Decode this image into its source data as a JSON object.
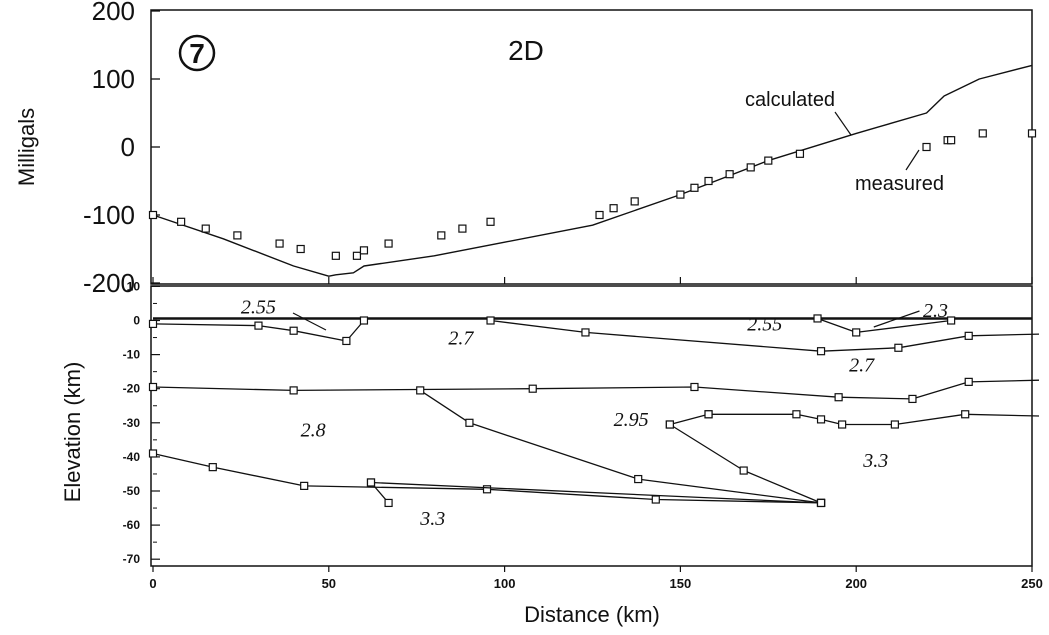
{
  "chart_data": [
    {
      "type": "line",
      "panel_label": "7",
      "title": "2D",
      "ylabel": "Milligals",
      "ylim": [
        -200,
        200
      ],
      "yticks": [
        "200",
        "100",
        "0",
        "-100",
        "-200"
      ],
      "xlim": [
        0,
        250
      ],
      "series": [
        {
          "name": "calculated",
          "style": "line",
          "x": [
            0,
            20,
            40,
            50,
            52,
            57,
            60,
            80,
            100,
            125,
            150,
            175,
            200,
            220,
            225,
            235,
            250
          ],
          "y": [
            -100,
            -135,
            -175,
            -190,
            -188,
            -185,
            -175,
            -160,
            -140,
            -115,
            -70,
            -20,
            20,
            50,
            75,
            100,
            120
          ]
        },
        {
          "name": "measured",
          "style": "markers",
          "x": [
            0,
            8,
            15,
            24,
            36,
            42,
            52,
            58,
            60,
            67,
            82,
            88,
            96,
            127,
            131,
            137,
            150,
            154,
            158,
            164,
            170,
            175,
            184,
            220,
            226,
            227,
            236,
            250
          ],
          "y": [
            -100,
            -110,
            -120,
            -130,
            -142,
            -150,
            -160,
            -160,
            -152,
            -142,
            -130,
            -120,
            -110,
            -100,
            -90,
            -80,
            -70,
            -60,
            -50,
            -40,
            -30,
            -20,
            -10,
            0,
            10,
            10,
            20,
            20
          ]
        }
      ],
      "annotations": [
        "calculated",
        "measured"
      ]
    },
    {
      "type": "line",
      "xlabel": "Distance (km)",
      "ylabel": "Elevation (km)",
      "xlim": [
        0,
        250
      ],
      "ylim": [
        -70,
        10
      ],
      "xticks": [
        "0",
        "50",
        "100",
        "150",
        "200",
        "250"
      ],
      "yticks": [
        "10",
        "0",
        "-10",
        "-20",
        "-30",
        "-40",
        "-50",
        "-60",
        "-70"
      ],
      "lines": [
        {
          "style": "thick",
          "markers": false,
          "x": [
            0,
            250
          ],
          "y": [
            0.6,
            0.6
          ]
        },
        {
          "markers": true,
          "x": [
            0,
            30,
            40,
            55,
            60
          ],
          "y": [
            -1,
            -1.5,
            -3,
            -6,
            0
          ]
        },
        {
          "markers": true,
          "x": [
            96,
            123,
            190,
            212,
            232,
            252
          ],
          "y": [
            0,
            -3.5,
            -9,
            -8,
            -4.5,
            -4
          ]
        },
        {
          "markers": true,
          "x": [
            189,
            200,
            227
          ],
          "y": [
            0.6,
            -3.5,
            0
          ]
        },
        {
          "markers": true,
          "x": [
            0,
            40,
            108,
            154,
            195,
            216,
            232,
            252
          ],
          "y": [
            -19.5,
            -20.5,
            -20,
            -19.5,
            -22.5,
            -23,
            -18,
            -17.5
          ]
        },
        {
          "markers": true,
          "x": [
            158,
            183,
            190,
            196,
            211,
            231,
            252
          ],
          "y": [
            -27.5,
            -27.5,
            -29,
            -30.5,
            -30.5,
            -27.5,
            -28
          ]
        },
        {
          "markers": true,
          "x": [
            0,
            17,
            43,
            95,
            143,
            190
          ],
          "y": [
            -39,
            -43,
            -48.5,
            -49.5,
            -52.5,
            -53.5
          ]
        },
        {
          "markers": true,
          "x": [
            62,
            67
          ],
          "y": [
            -47.5,
            -53.5
          ]
        },
        {
          "markers": true,
          "x": [
            62,
            190
          ],
          "y": [
            -47.5,
            -53.5
          ]
        },
        {
          "markers": true,
          "x": [
            76,
            90,
            138,
            190
          ],
          "y": [
            -20.5,
            -30,
            -46.5,
            -53.5
          ]
        },
        {
          "markers": true,
          "x": [
            147,
            168,
            190
          ],
          "y": [
            -30.5,
            -44,
            -53.5
          ]
        },
        {
          "markers": true,
          "x": [
            147,
            158
          ],
          "y": [
            -30.5,
            -27.5
          ]
        }
      ],
      "leader_line": {
        "from": [
          205,
          2
        ],
        "to": [
          218,
          1
        ]
      },
      "density_labels": [
        {
          "text": "2.55",
          "x": 25,
          "y": 2
        },
        {
          "text": "2.7",
          "x": 84,
          "y": -7
        },
        {
          "text": "2.55",
          "x": 169,
          "y": -3
        },
        {
          "text": "2.3",
          "x": 219,
          "y": 1
        },
        {
          "text": "2.7",
          "x": 198,
          "y": -15
        },
        {
          "text": "2.8",
          "x": 42,
          "y": -34
        },
        {
          "text": "2.95",
          "x": 131,
          "y": -31
        },
        {
          "text": "3.3",
          "x": 202,
          "y": -43
        },
        {
          "text": "3.3",
          "x": 76,
          "y": -60
        }
      ]
    }
  ]
}
